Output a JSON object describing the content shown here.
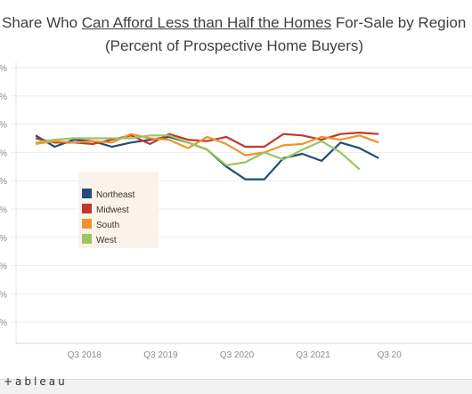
{
  "header": {
    "title_pre": "Share Who ",
    "title_underlined": "Can Afford Less than Half the Homes",
    "title_post": " For-Sale by Region",
    "subtitle": "(Percent of Prospective Home Buyers)"
  },
  "footer": {
    "logo": "+ableau"
  },
  "colors": {
    "Northeast": "#1f4e79",
    "Midwest": "#c0392b",
    "South": "#f0932b",
    "West": "#9dc45f",
    "legend_bg": "#fbf2ec"
  },
  "chart_data": {
    "type": "line",
    "title": "Share Who Can Afford Less than Half the Homes For-Sale by Region",
    "subtitle": "(Percent of Prospective Home Buyers)",
    "x_tick_labels": [
      "Q3 2018",
      "Q3 2019",
      "Q3 2020",
      "Q3 2021",
      "Q3 20"
    ],
    "y_tick_labels": [
      "%",
      "%",
      "%",
      "%",
      "%",
      "%",
      "%",
      "%",
      "%",
      "%"
    ],
    "ylim": [
      0,
      100
    ],
    "grid": true,
    "legend_position": "left",
    "x": [
      "Q1 2018",
      "Q2 2018",
      "Q3 2018",
      "Q4 2018",
      "Q1 2019",
      "Q2 2019",
      "Q3 2019",
      "Q4 2019",
      "Q1 2020",
      "Q2 2020",
      "Q3 2020",
      "Q4 2020",
      "Q1 2021",
      "Q2 2021",
      "Q3 2021",
      "Q4 2021",
      "Q1 2022",
      "Q2 2022",
      "Q3 2022",
      "Q4 2022",
      "Q1 2023"
    ],
    "series": [
      {
        "name": "Northeast",
        "values": [
          76,
          72,
          74.5,
          74,
          72,
          73.5,
          74.5,
          75.5,
          73.5,
          71,
          65,
          60.5,
          60.5,
          68,
          69.5,
          67,
          73.5,
          71.5,
          68,
          null,
          null
        ]
      },
      {
        "name": "Midwest",
        "values": [
          75,
          73.5,
          73.5,
          73,
          74.5,
          76,
          73,
          76.5,
          74.5,
          74,
          75.5,
          72,
          72,
          76.5,
          76,
          74.5,
          76.5,
          77,
          76.5,
          null,
          null
        ]
      },
      {
        "name": "South",
        "values": [
          73,
          74,
          73.5,
          74,
          73.5,
          76.5,
          75,
          74.5,
          71.5,
          75.5,
          73,
          69,
          70,
          72.5,
          73,
          75.5,
          74.5,
          76,
          73.5,
          null,
          null
        ]
      },
      {
        "name": "West",
        "values": [
          73.5,
          74.5,
          75,
          75,
          75,
          75,
          76,
          76,
          73.5,
          71,
          65.5,
          66.5,
          70,
          67.5,
          71,
          74,
          70,
          64,
          null,
          null,
          null
        ]
      }
    ]
  }
}
